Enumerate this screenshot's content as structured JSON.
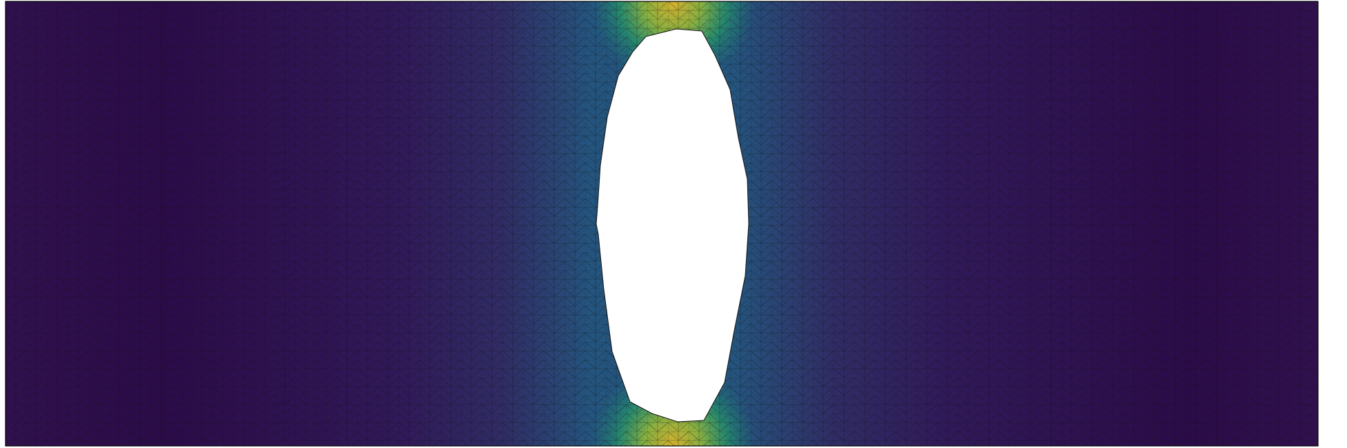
{
  "figure": {
    "kind": "finite-element stress field on a plate with an elliptical hole",
    "colormap": "viridis",
    "colormap_stops": [
      "#2f0b4c",
      "#30275f",
      "#2d3f74",
      "#24557f",
      "#1b7a78",
      "#27966a",
      "#6eb24a",
      "#b6b52a",
      "#d4b22c"
    ],
    "mesh_line_color": "#111111",
    "hole_fill": "#ffffff",
    "outline_color": "#000000"
  }
}
